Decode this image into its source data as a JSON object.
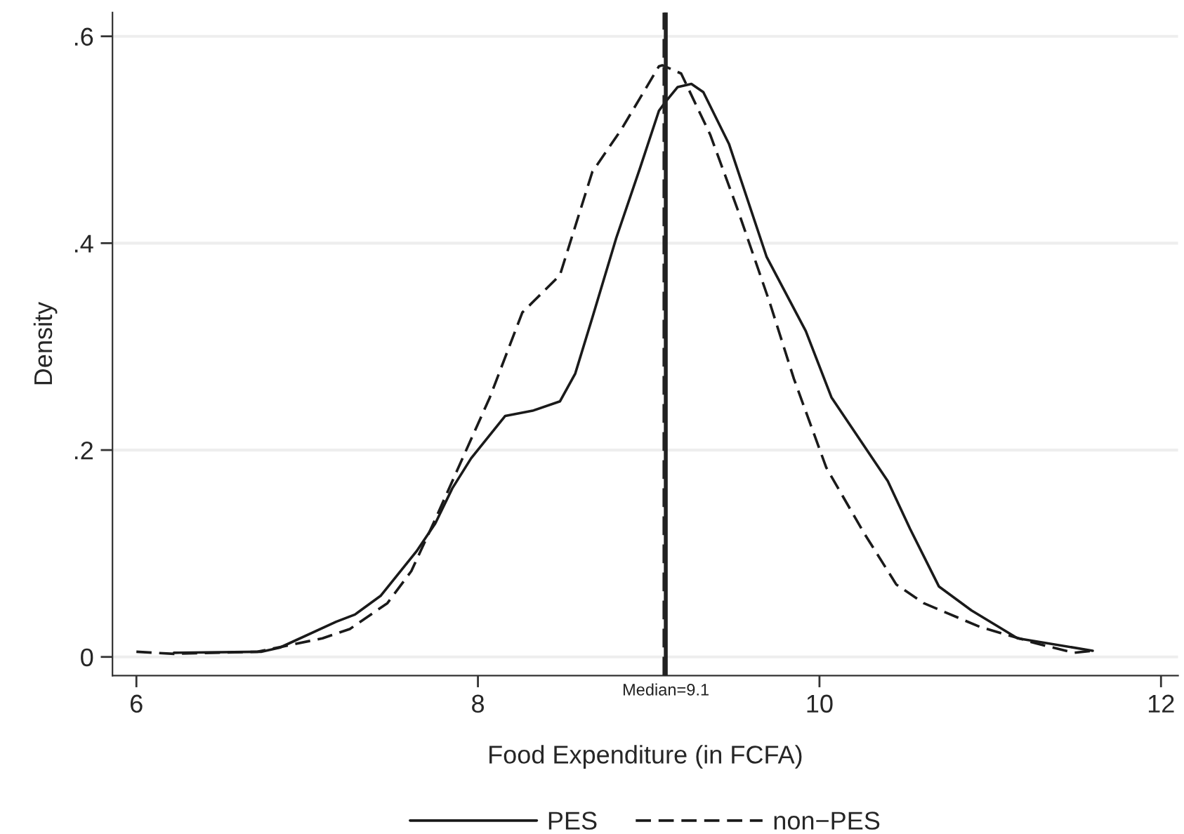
{
  "chart_data": {
    "type": "line",
    "xlabel": "Food Expenditure (in FCFA)",
    "ylabel": "Density",
    "xlim": [
      5.86,
      12.1
    ],
    "xticks": [
      6,
      8,
      10,
      12
    ],
    "ylim": [
      -0.018,
      0.623
    ],
    "yticks": [
      {
        "value": 0,
        "label": "0"
      },
      {
        "value": 0.2,
        "label": ".2"
      },
      {
        "value": 0.4,
        "label": ".4"
      },
      {
        "value": 0.6,
        "label": ".6"
      }
    ],
    "grid": "y",
    "legend": "bottom",
    "marker": "none",
    "ref_lines": [
      {
        "axis": "x",
        "value": 9.1,
        "label": "Median=9.1",
        "color": "#222222",
        "line_style": "solid"
      },
      {
        "axis": "x",
        "value": 9.09,
        "label": null,
        "color": "#222222",
        "line_style": "dashed"
      }
    ],
    "series": [
      {
        "name": "PES",
        "color": "#1a1a1a",
        "line_style": "solid",
        "x": [
          6.22,
          6.73,
          6.84,
          7.17,
          7.28,
          7.43,
          7.64,
          7.75,
          7.85,
          7.96,
          8.16,
          8.32,
          8.48,
          8.57,
          8.67,
          8.81,
          8.95,
          9.06,
          9.1,
          9.17,
          9.25,
          9.32,
          9.47,
          9.69,
          9.92,
          10.07,
          10.4,
          10.53,
          10.7,
          10.89,
          11.16,
          11.6
        ],
        "values": [
          0.004,
          0.005,
          0.009,
          0.034,
          0.041,
          0.059,
          0.102,
          0.129,
          0.163,
          0.192,
          0.233,
          0.238,
          0.247,
          0.274,
          0.328,
          0.405,
          0.473,
          0.528,
          0.537,
          0.551,
          0.554,
          0.546,
          0.496,
          0.387,
          0.315,
          0.251,
          0.17,
          0.124,
          0.068,
          0.045,
          0.018,
          0.006
        ]
      },
      {
        "name": "non−PES",
        "color": "#1a1a1a",
        "line_style": "dashed",
        "x": [
          6.0,
          6.22,
          6.71,
          7.09,
          7.25,
          7.47,
          7.61,
          7.75,
          7.91,
          8.07,
          8.26,
          8.48,
          8.67,
          8.84,
          9.06,
          9.08,
          9.19,
          9.36,
          9.52,
          9.71,
          9.85,
          10.04,
          10.26,
          10.45,
          10.61,
          10.94,
          11.27,
          11.49,
          11.6
        ],
        "values": [
          0.005,
          0.003,
          0.005,
          0.018,
          0.027,
          0.052,
          0.083,
          0.133,
          0.192,
          0.251,
          0.333,
          0.369,
          0.469,
          0.51,
          0.571,
          0.572,
          0.564,
          0.505,
          0.433,
          0.342,
          0.269,
          0.183,
          0.12,
          0.07,
          0.052,
          0.029,
          0.013,
          0.004,
          0.006
        ]
      }
    ]
  }
}
